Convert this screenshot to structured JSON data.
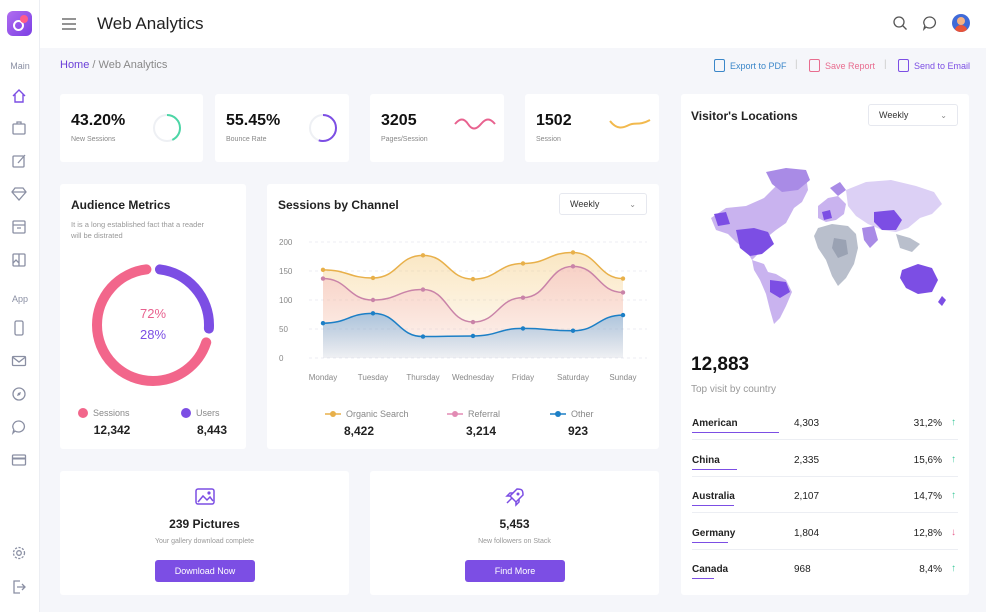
{
  "header": {
    "title": "Web Analytics"
  },
  "sidebar": {
    "sections": [
      {
        "label": "Main"
      },
      {
        "label": "App"
      }
    ],
    "main_icons": [
      "home-icon",
      "briefcase-icon",
      "edit-icon",
      "diamond-icon",
      "archive-icon",
      "gallery-icon"
    ],
    "app_icons": [
      "phone-icon",
      "mail-icon",
      "compass-icon",
      "chat-icon",
      "card-icon"
    ],
    "bottom_icons": [
      "settings-icon",
      "logout-icon"
    ]
  },
  "breadcrumb": {
    "home": "Home",
    "separator": " / ",
    "current": "Web Analytics"
  },
  "actions": [
    {
      "label": "Export to PDF",
      "color": "#3b87c9"
    },
    {
      "label": "Save Report",
      "color": "#e86d8f"
    },
    {
      "label": "Send to Email",
      "color": "#7c4ee4"
    }
  ],
  "stats": [
    {
      "value": "43.20%",
      "label": "New Sessions",
      "color": "#4cd6a6",
      "fraction": 0.43
    },
    {
      "value": "55.45%",
      "label": "Bounce Rate",
      "color": "#7c4ee4",
      "fraction": 0.55
    },
    {
      "value": "3205",
      "label": "Pages/Session",
      "color": "#e8628f"
    },
    {
      "value": "1502",
      "label": "Session",
      "color": "#f2b94d"
    }
  ],
  "audience": {
    "title": "Audience Metrics",
    "desc_line1": "It is a long established fact that a reader",
    "desc_line2": "will be distrated",
    "pct1": "72%",
    "pct2": "28%",
    "legend": [
      {
        "label": "Sessions",
        "value": "12,342",
        "color": "#f2668b"
      },
      {
        "label": "Users",
        "value": "8,443",
        "color": "#7c4ee4"
      }
    ]
  },
  "sessions": {
    "title": "Sessions by Channel",
    "select": "Weekly",
    "legend": [
      {
        "label": "Organic Search",
        "value": "8,422",
        "color": "#e8b04a"
      },
      {
        "label": "Referral",
        "value": "3,214",
        "color": "#e28bb4"
      },
      {
        "label": "Other",
        "value": "923",
        "color": "#1c7fc6"
      }
    ]
  },
  "chart_data": {
    "type": "area",
    "categories": [
      "Monday",
      "Tuesday",
      "Thursday",
      "Wednesday",
      "Friday",
      "Saturday",
      "Sunday"
    ],
    "yticks": [
      "0",
      "50",
      "100",
      "150",
      "200"
    ],
    "ylim": [
      0,
      200
    ],
    "series": [
      {
        "name": "Organic Search",
        "values": [
          152,
          138,
          177,
          136,
          163,
          182,
          137
        ],
        "color": "#e8b04a"
      },
      {
        "name": "Referral",
        "values": [
          137,
          100,
          118,
          62,
          104,
          158,
          113
        ],
        "color": "#c983a8"
      },
      {
        "name": "Other",
        "values": [
          60,
          77,
          37,
          38,
          51,
          47,
          74
        ],
        "color": "#1c7fc6"
      }
    ]
  },
  "promos": [
    {
      "title": "239 Pictures",
      "subtitle": "Your gallery download complete",
      "button": "Download Now",
      "icon": "picture-icon"
    },
    {
      "title": "5,453",
      "subtitle": "New followers on Stack",
      "button": "Find More",
      "icon": "rocket-icon"
    }
  ],
  "visitors": {
    "title": "Visitor's Locations",
    "select": "Weekly",
    "total": "12,883",
    "subtitle": "Top visit by country",
    "countries": [
      {
        "name": "American",
        "value": "4,303",
        "pct": "31,2%",
        "trend": "up",
        "share": 0.31
      },
      {
        "name": "China",
        "value": "2,335",
        "pct": "15,6%",
        "trend": "up",
        "share": 0.16
      },
      {
        "name": "Australia",
        "value": "2,107",
        "pct": "14,7%",
        "trend": "up",
        "share": 0.15
      },
      {
        "name": "Germany",
        "value": "1,804",
        "pct": "12,8%",
        "trend": "down",
        "share": 0.13
      },
      {
        "name": "Canada",
        "value": "968",
        "pct": "8,4%",
        "trend": "up",
        "share": 0.08
      }
    ],
    "up_arrow": "↑",
    "down_arrow": "↓"
  }
}
